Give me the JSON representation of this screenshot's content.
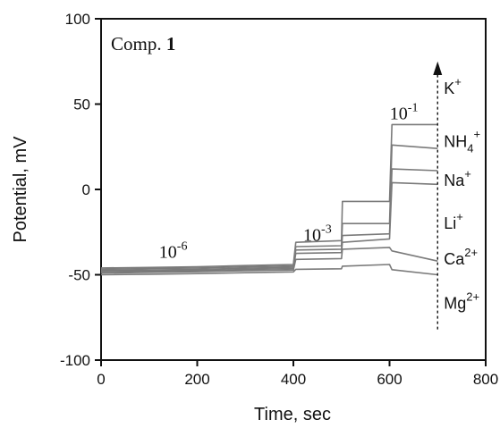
{
  "chart_data": {
    "type": "line",
    "title": "",
    "inset_label": {
      "prefix": "Comp. ",
      "number": "1"
    },
    "xlabel": "Time, sec",
    "ylabel": "Potential, mV",
    "xlim": [
      0,
      800
    ],
    "ylim": [
      -100,
      100
    ],
    "xticks": [
      0,
      200,
      400,
      600,
      800
    ],
    "yticks": [
      -100,
      -50,
      0,
      50,
      100
    ],
    "grid": false,
    "concentration_labels": [
      {
        "base": "10",
        "exp": "-6",
        "x": 150,
        "y": -40
      },
      {
        "base": "10",
        "exp": "-3",
        "x": 450,
        "y": -30
      },
      {
        "base": "10",
        "exp": "-1",
        "x": 630,
        "y": 41
      }
    ],
    "ion_labels": [
      {
        "base": "K",
        "sub": "",
        "sup": "+",
        "y": 56
      },
      {
        "base": "NH",
        "sub": "4",
        "sup": "+",
        "y": 25
      },
      {
        "base": "Na",
        "sub": "",
        "sup": "+",
        "y": 2
      },
      {
        "base": "Li",
        "sub": "",
        "sup": "+",
        "y": -23
      },
      {
        "base": "Ca",
        "sub": "",
        "sup": "2+",
        "y": -44
      },
      {
        "base": "Mg",
        "sub": "",
        "sup": "2+",
        "y": -70
      }
    ],
    "series": [
      {
        "x": [
          0,
          100,
          200,
          300,
          400,
          405,
          500,
          502,
          600,
          605,
          700
        ],
        "y": [
          -46,
          -45.7,
          -45.3,
          -44.6,
          -44,
          -31,
          -30,
          -7,
          -7,
          38,
          38
        ]
      },
      {
        "x": [
          0,
          100,
          200,
          300,
          400,
          405,
          500,
          502,
          600,
          605,
          700
        ],
        "y": [
          -46.8,
          -46.4,
          -46,
          -45.4,
          -44.8,
          -33.5,
          -33,
          -20,
          -20,
          26,
          24
        ]
      },
      {
        "x": [
          0,
          100,
          200,
          300,
          400,
          405,
          500,
          502,
          600,
          605,
          700
        ],
        "y": [
          -47.5,
          -47.2,
          -46.8,
          -46.2,
          -45.6,
          -35.5,
          -35,
          -27,
          -26,
          12,
          11
        ]
      },
      {
        "x": [
          0,
          100,
          200,
          300,
          400,
          405,
          500,
          502,
          600,
          605,
          700
        ],
        "y": [
          -48.2,
          -47.9,
          -47.5,
          -46.9,
          -46.4,
          -37.5,
          -37,
          -31,
          -29,
          4,
          3
        ]
      },
      {
        "x": [
          0,
          100,
          200,
          300,
          400,
          405,
          500,
          502,
          600,
          605,
          700
        ],
        "y": [
          -49,
          -48.6,
          -48.2,
          -47.6,
          -47.2,
          -41,
          -40.5,
          -35,
          -34,
          -36,
          -42
        ]
      },
      {
        "x": [
          0,
          100,
          200,
          300,
          400,
          405,
          500,
          502,
          600,
          605,
          700
        ],
        "y": [
          -50,
          -49.7,
          -49.3,
          -48.8,
          -48.3,
          -46.8,
          -46.5,
          -45,
          -44,
          -47,
          -50
        ]
      }
    ]
  }
}
